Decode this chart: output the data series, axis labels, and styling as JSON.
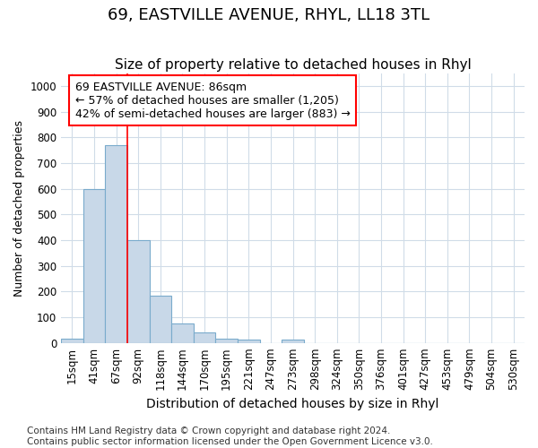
{
  "title": "69, EASTVILLE AVENUE, RHYL, LL18 3TL",
  "subtitle": "Size of property relative to detached houses in Rhyl",
  "xlabel": "Distribution of detached houses by size in Rhyl",
  "ylabel": "Number of detached properties",
  "bins": [
    "15sqm",
    "41sqm",
    "67sqm",
    "92sqm",
    "118sqm",
    "144sqm",
    "170sqm",
    "195sqm",
    "221sqm",
    "247sqm",
    "273sqm",
    "298sqm",
    "324sqm",
    "350sqm",
    "376sqm",
    "401sqm",
    "427sqm",
    "453sqm",
    "479sqm",
    "504sqm",
    "530sqm"
  ],
  "values": [
    15,
    600,
    770,
    400,
    185,
    75,
    40,
    18,
    13,
    0,
    13,
    0,
    0,
    0,
    0,
    0,
    0,
    0,
    0,
    0,
    0
  ],
  "bar_color": "#c8d8e8",
  "bar_edge_color": "#7aabcc",
  "ylim": [
    0,
    1050
  ],
  "yticks": [
    0,
    100,
    200,
    300,
    400,
    500,
    600,
    700,
    800,
    900,
    1000
  ],
  "red_line_index": 3,
  "annotation_text": "69 EASTVILLE AVENUE: 86sqm\n← 57% of detached houses are smaller (1,205)\n42% of semi-detached houses are larger (883) →",
  "footnote": "Contains HM Land Registry data © Crown copyright and database right 2024.\nContains public sector information licensed under the Open Government Licence v3.0.",
  "background_color": "#ffffff",
  "grid_color": "#d0dce8",
  "title_fontsize": 13,
  "subtitle_fontsize": 11,
  "xlabel_fontsize": 10,
  "ylabel_fontsize": 9,
  "tick_fontsize": 8.5,
  "annotation_fontsize": 9,
  "footnote_fontsize": 7.5
}
